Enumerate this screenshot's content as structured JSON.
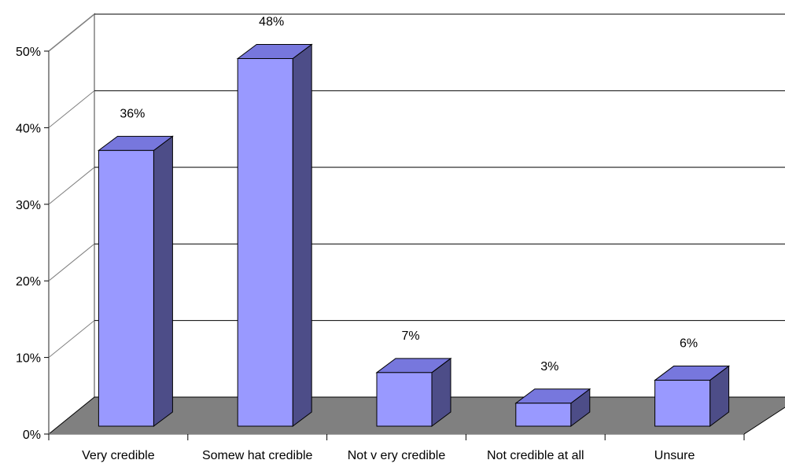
{
  "chart_data": {
    "type": "bar",
    "categories": [
      "Very  credible",
      "Somew hat credible",
      "Not v ery  credible",
      "Not credible at all",
      "Unsure"
    ],
    "values": [
      36,
      48,
      7,
      3,
      6
    ],
    "data_labels": [
      "36%",
      "48%",
      "7%",
      "3%",
      "6%"
    ],
    "ylim": [
      0,
      50
    ],
    "yticks": [
      0,
      10,
      20,
      30,
      40,
      50
    ],
    "ytick_labels": [
      "0%",
      "10%",
      "20%",
      "30%",
      "40%",
      "50%"
    ],
    "grid": true,
    "three_d": true,
    "legend": "none",
    "colors": {
      "bar_front": "#9999FF",
      "bar_top": "#7777DD",
      "bar_side": "#4D4D88",
      "floor": "#808080",
      "grid": "#000000",
      "wall": "#808080"
    }
  }
}
